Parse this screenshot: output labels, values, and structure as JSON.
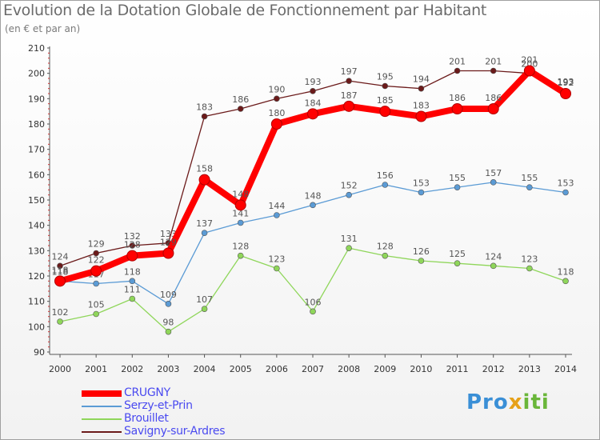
{
  "page": {
    "title": "Evolution de la Dotation Globale de Fonctionnement par Habitant",
    "subtitle": "(en € et par an)",
    "brand": {
      "p1": "Pro",
      "p2": "x",
      "p3": "iti"
    }
  },
  "chart_data": {
    "type": "line",
    "title": "Evolution de la Dotation Globale de Fonctionnement par Habitant",
    "subtitle": "(en € et par an)",
    "xlabel": "",
    "ylabel": "",
    "ylim": [
      90,
      210
    ],
    "yticks": [
      90,
      100,
      110,
      120,
      130,
      140,
      150,
      160,
      170,
      180,
      190,
      200,
      210
    ],
    "grid": false,
    "legend_position": "bottom-left",
    "categories": [
      "2000",
      "2001",
      "2002",
      "2003",
      "2004",
      "2005",
      "2006",
      "2007",
      "2008",
      "2009",
      "2010",
      "2011",
      "2012",
      "2013",
      "2014"
    ],
    "series": [
      {
        "name": "Savigny-sur-Ardres",
        "color": "#6b1a1a",
        "style": "thin",
        "values": [
          124,
          129,
          132,
          133,
          183,
          186,
          190,
          193,
          197,
          195,
          194,
          201,
          201,
          200,
          193
        ],
        "labels": [
          "124",
          "129",
          "132",
          "133",
          "183",
          "186",
          "190",
          "193",
          "197",
          "195",
          "194",
          "201",
          "201",
          "200",
          "193"
        ]
      },
      {
        "name": "Serzy-et-Prin",
        "color": "#5b9bd5",
        "style": "thin",
        "values": [
          118,
          117,
          118,
          109,
          137,
          141,
          144,
          148,
          152,
          156,
          153,
          155,
          157,
          155,
          153
        ],
        "labels": [
          "118",
          "117",
          "118",
          "109",
          "137",
          "141",
          "144",
          "148",
          "152",
          "156",
          "153",
          "155",
          "157",
          "155",
          "153"
        ]
      },
      {
        "name": "Brouillet",
        "color": "#8fd65a",
        "style": "thin",
        "values": [
          102,
          105,
          111,
          98,
          107,
          128,
          123,
          106,
          131,
          128,
          126,
          125,
          124,
          123,
          118
        ],
        "labels": [
          "102",
          "105",
          "111",
          "98",
          "107",
          "128",
          "123",
          "106",
          "131",
          "128",
          "126",
          "125",
          "124",
          "123",
          "118"
        ]
      },
      {
        "name": "CRUGNY",
        "color": "#ff0000",
        "style": "thick",
        "values": [
          118,
          122,
          128,
          129,
          158,
          148,
          180,
          184,
          187,
          185,
          183,
          186,
          186,
          201,
          192
        ],
        "labels": [
          "118",
          "122",
          "128",
          "129",
          "158",
          "148",
          "180",
          "184",
          "187",
          "185",
          "183",
          "186",
          "186",
          "201",
          "192"
        ]
      }
    ],
    "legend_order": [
      "CRUGNY",
      "Serzy-et-Prin",
      "Brouillet",
      "Savigny-sur-Ardres"
    ]
  }
}
